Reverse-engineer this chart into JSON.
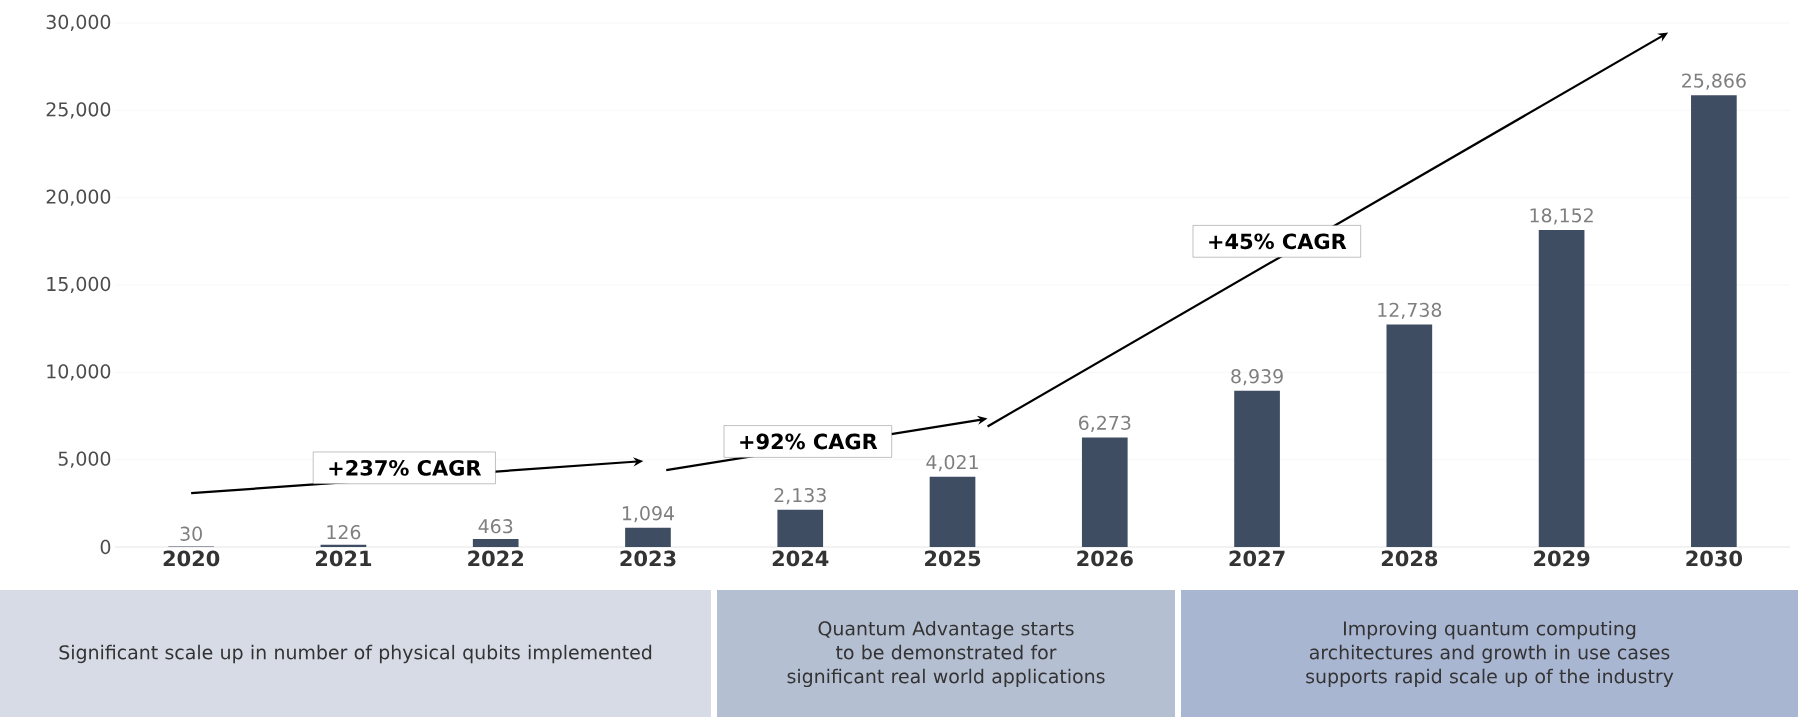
{
  "chart_data": {
    "type": "bar",
    "categories": [
      "2020",
      "2021",
      "2022",
      "2023",
      "2024",
      "2025",
      "2026",
      "2027",
      "2028",
      "2029",
      "2030"
    ],
    "values": [
      30,
      126,
      463,
      1094,
      2133,
      4021,
      6273,
      8939,
      12738,
      18152,
      25866
    ],
    "value_labels": [
      "30",
      "126",
      "463",
      "1,094",
      "2,133",
      "4,021",
      "6,273",
      "8,939",
      "12,738",
      "18,152",
      "25,866"
    ],
    "color": "#3f4d63",
    "ylim": [
      0,
      30000
    ],
    "yticks": [
      0,
      {
        "value": 5000,
        "label": "5,000"
      },
      {
        "value": 10000,
        "label": "10,000"
      },
      {
        "value": 15000,
        "label": "15,000"
      },
      {
        "value": 20000,
        "label": "20,000"
      },
      {
        "value": 25000,
        "label": "25,000"
      },
      {
        "value": 30000,
        "label": "30,000"
      }
    ],
    "grid": "y",
    "annotations": [
      "+237% CAGR",
      "+92% CAGR",
      "+45% CAGR",
      "Significant scale up in number of physical qubits implemented",
      "Quantum Advantage starts to be demonstrated for significant real world applications",
      "Improving quantum computing architectures and growth in use cases supports rapid scale up of the industry"
    ]
  }
}
